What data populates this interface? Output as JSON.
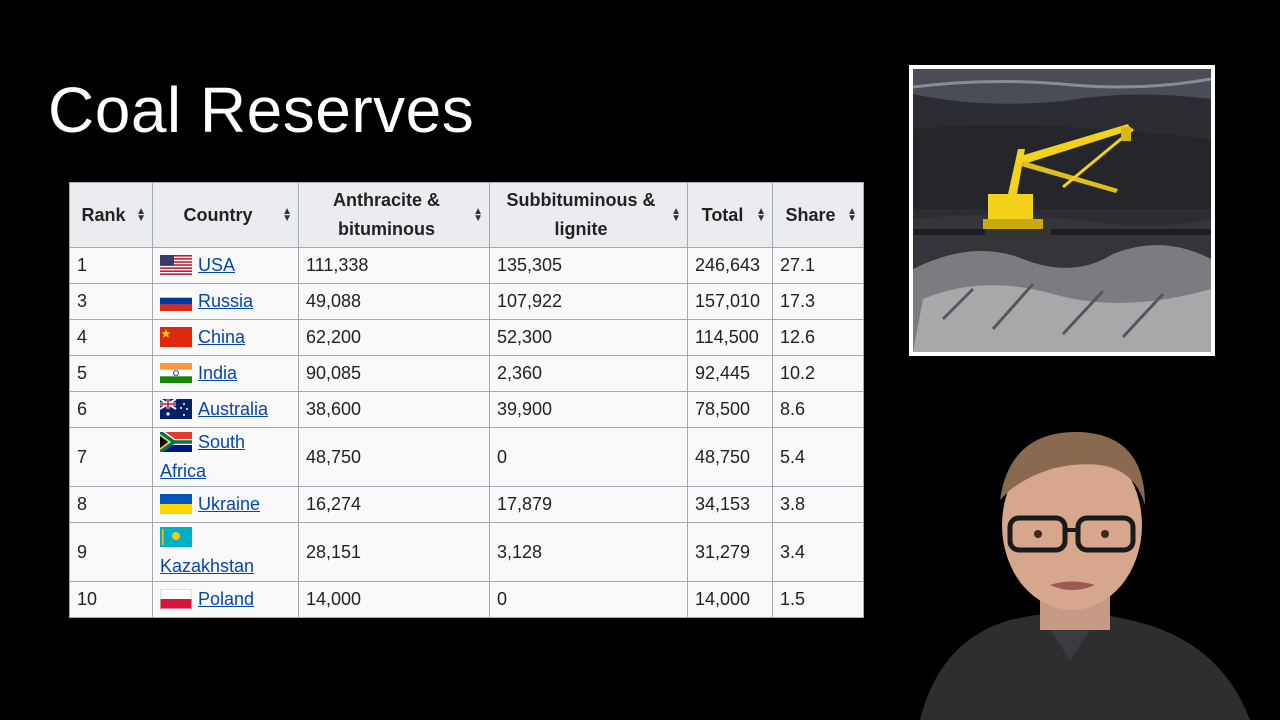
{
  "slide": {
    "title": "Coal Reserves"
  },
  "table": {
    "headers": [
      {
        "label": "Rank"
      },
      {
        "label": "Country"
      },
      {
        "label": "Anthracite & bituminous"
      },
      {
        "label": "Subbituminous & lignite"
      },
      {
        "label": "Total"
      },
      {
        "label": "Share"
      }
    ],
    "rows": [
      {
        "rank": "1",
        "country": "USA",
        "flag": "usa-flag-icon",
        "anthracite": "111,338",
        "subbituminous": "135,305",
        "total": "246,643",
        "share": "27.1"
      },
      {
        "rank": "3",
        "country": "Russia",
        "flag": "russia-flag-icon",
        "anthracite": "49,088",
        "subbituminous": "107,922",
        "total": "157,010",
        "share": "17.3"
      },
      {
        "rank": "4",
        "country": "China",
        "flag": "china-flag-icon",
        "anthracite": "62,200",
        "subbituminous": "52,300",
        "total": "114,500",
        "share": "12.6"
      },
      {
        "rank": "5",
        "country": "India",
        "flag": "india-flag-icon",
        "anthracite": "90,085",
        "subbituminous": "2,360",
        "total": "92,445",
        "share": "10.2"
      },
      {
        "rank": "6",
        "country": "Australia",
        "flag": "australia-flag-icon",
        "anthracite": "38,600",
        "subbituminous": "39,900",
        "total": "78,500",
        "share": "8.6"
      },
      {
        "rank": "7",
        "country": "South Africa",
        "flag": "south-africa-flag-icon",
        "anthracite": "48,750",
        "subbituminous": "0",
        "total": "48,750",
        "share": "5.4"
      },
      {
        "rank": "8",
        "country": "Ukraine",
        "flag": "ukraine-flag-icon",
        "anthracite": "16,274",
        "subbituminous": "17,879",
        "total": "34,153",
        "share": "3.8"
      },
      {
        "rank": "9",
        "country": "Kazakhstan",
        "flag": "kazakhstan-flag-icon",
        "anthracite": "28,151",
        "subbituminous": "3,128",
        "total": "31,279",
        "share": "3.4"
      },
      {
        "rank": "10",
        "country": "Poland",
        "flag": "poland-flag-icon",
        "anthracite": "14,000",
        "subbituminous": "0",
        "total": "14,000",
        "share": "1.5"
      }
    ]
  },
  "colors": {
    "background": "#000000",
    "title": "#ffffff",
    "link": "#0645ad",
    "header_bg": "#eaecf0",
    "cell_bg": "#f9f9f9",
    "border": "#a2a9b1",
    "excavator": "#f2d21b"
  }
}
